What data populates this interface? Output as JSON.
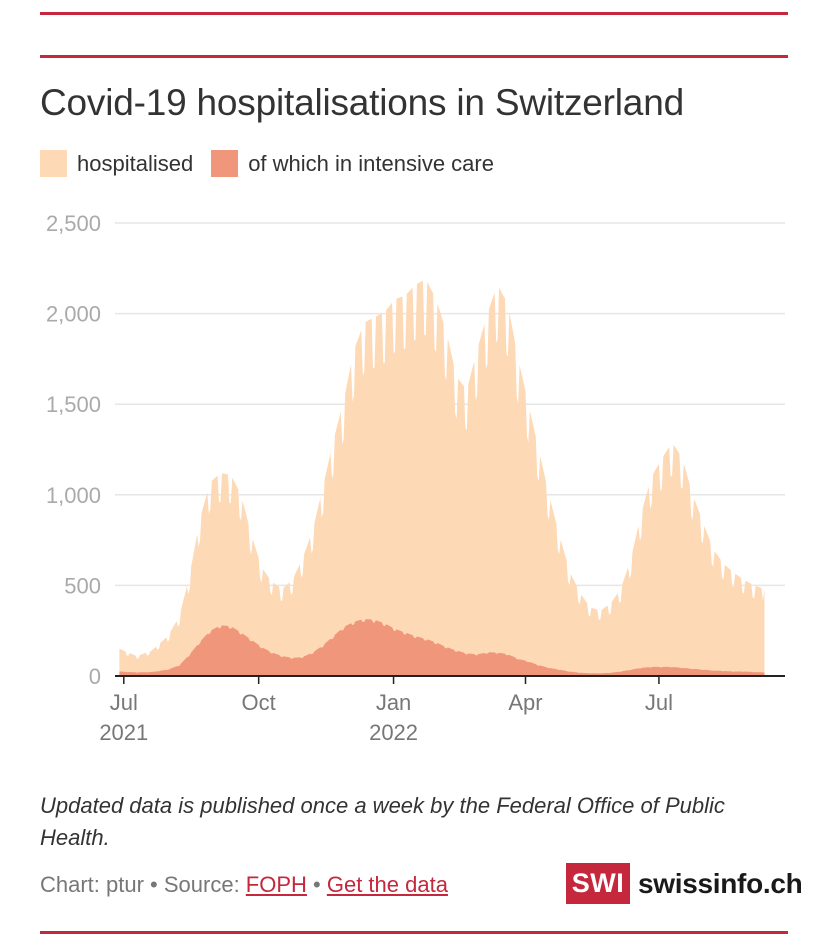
{
  "title": "Covid-19 hospitalisations in Switzerland",
  "legend": [
    {
      "label": "hospitalised",
      "color": "#fdd9b5"
    },
    {
      "label": "of which in intensive care",
      "color": "#f0967a"
    }
  ],
  "note": "Updated data is published once a week by the Federal Office of Public Health.",
  "credits": {
    "prefix": "Chart: ptur • Source: ",
    "source_link": "FOPH",
    "separator": " • ",
    "data_link": "Get the data"
  },
  "logo": {
    "box": "SWI",
    "text": "swissinfo.ch"
  },
  "colors": {
    "accent": "#c5283d",
    "hospitalised": "#fdd9b5",
    "icu": "#f0967a",
    "grid": "#e6e6e6",
    "tick": "#aaaaaa"
  },
  "chart_data": {
    "type": "area",
    "title": "Covid-19 hospitalisations in Switzerland",
    "xlabel": "",
    "ylabel": "",
    "ylim": [
      0,
      2500
    ],
    "yticks": [
      0,
      500,
      1000,
      1500,
      2000,
      2500
    ],
    "ytick_labels": [
      "0",
      "500",
      "1,000",
      "1,500",
      "2,000",
      "2,500"
    ],
    "xlim": [
      "2021-06-25",
      "2022-09-25"
    ],
    "xticks": [
      {
        "date": "2021-07-01",
        "label": "Jul",
        "sublabel": "2021"
      },
      {
        "date": "2021-10-01",
        "label": "Oct",
        "sublabel": ""
      },
      {
        "date": "2022-01-01",
        "label": "Jan",
        "sublabel": "2022"
      },
      {
        "date": "2022-04-01",
        "label": "Apr",
        "sublabel": ""
      },
      {
        "date": "2022-07-01",
        "label": "Jul",
        "sublabel": ""
      }
    ],
    "grid": true,
    "weekly_pattern": true,
    "series": [
      {
        "name": "hospitalised",
        "points": [
          [
            "2021-06-28",
            150
          ],
          [
            "2021-07-10",
            110
          ],
          [
            "2021-07-20",
            140
          ],
          [
            "2021-07-31",
            220
          ],
          [
            "2021-08-08",
            330
          ],
          [
            "2021-08-15",
            560
          ],
          [
            "2021-08-22",
            870
          ],
          [
            "2021-08-29",
            1070
          ],
          [
            "2021-09-05",
            1120
          ],
          [
            "2021-09-12",
            1110
          ],
          [
            "2021-09-19",
            1000
          ],
          [
            "2021-09-26",
            780
          ],
          [
            "2021-10-03",
            600
          ],
          [
            "2021-10-10",
            520
          ],
          [
            "2021-10-17",
            480
          ],
          [
            "2021-10-24",
            530
          ],
          [
            "2021-10-31",
            650
          ],
          [
            "2021-11-07",
            810
          ],
          [
            "2021-11-14",
            1050
          ],
          [
            "2021-11-21",
            1300
          ],
          [
            "2021-11-28",
            1520
          ],
          [
            "2021-12-05",
            1800
          ],
          [
            "2021-12-12",
            1950
          ],
          [
            "2021-12-19",
            1980
          ],
          [
            "2021-12-26",
            2010
          ],
          [
            "2022-01-02",
            2080
          ],
          [
            "2022-01-09",
            2100
          ],
          [
            "2022-01-16",
            2160
          ],
          [
            "2022-01-23",
            2190
          ],
          [
            "2022-01-30",
            2080
          ],
          [
            "2022-02-06",
            1900
          ],
          [
            "2022-02-13",
            1650
          ],
          [
            "2022-02-20",
            1580
          ],
          [
            "2022-02-27",
            1800
          ],
          [
            "2022-03-06",
            2000
          ],
          [
            "2022-03-13",
            2160
          ],
          [
            "2022-03-20",
            2050
          ],
          [
            "2022-03-27",
            1750
          ],
          [
            "2022-04-03",
            1500
          ],
          [
            "2022-04-10",
            1250
          ],
          [
            "2022-04-17",
            1000
          ],
          [
            "2022-04-24",
            780
          ],
          [
            "2022-05-01",
            580
          ],
          [
            "2022-05-08",
            460
          ],
          [
            "2022-05-15",
            380
          ],
          [
            "2022-05-22",
            360
          ],
          [
            "2022-05-29",
            400
          ],
          [
            "2022-06-05",
            480
          ],
          [
            "2022-06-12",
            650
          ],
          [
            "2022-06-19",
            900
          ],
          [
            "2022-06-26",
            1100
          ],
          [
            "2022-07-03",
            1200
          ],
          [
            "2022-07-10",
            1290
          ],
          [
            "2022-07-17",
            1200
          ],
          [
            "2022-07-24",
            1000
          ],
          [
            "2022-07-31",
            850
          ],
          [
            "2022-08-07",
            700
          ],
          [
            "2022-08-14",
            620
          ],
          [
            "2022-08-21",
            570
          ],
          [
            "2022-08-28",
            530
          ],
          [
            "2022-09-04",
            500
          ],
          [
            "2022-09-11",
            480
          ]
        ]
      },
      {
        "name": "of which in intensive care",
        "points": [
          [
            "2021-06-28",
            25
          ],
          [
            "2021-07-10",
            20
          ],
          [
            "2021-07-20",
            22
          ],
          [
            "2021-07-31",
            35
          ],
          [
            "2021-08-08",
            60
          ],
          [
            "2021-08-15",
            120
          ],
          [
            "2021-08-22",
            190
          ],
          [
            "2021-08-29",
            250
          ],
          [
            "2021-09-05",
            280
          ],
          [
            "2021-09-12",
            275
          ],
          [
            "2021-09-19",
            240
          ],
          [
            "2021-09-26",
            200
          ],
          [
            "2021-10-03",
            160
          ],
          [
            "2021-10-10",
            130
          ],
          [
            "2021-10-17",
            110
          ],
          [
            "2021-10-24",
            100
          ],
          [
            "2021-10-31",
            105
          ],
          [
            "2021-11-07",
            130
          ],
          [
            "2021-11-14",
            170
          ],
          [
            "2021-11-21",
            220
          ],
          [
            "2021-11-28",
            270
          ],
          [
            "2021-12-05",
            300
          ],
          [
            "2021-12-12",
            315
          ],
          [
            "2021-12-19",
            310
          ],
          [
            "2021-12-26",
            290
          ],
          [
            "2022-01-02",
            260
          ],
          [
            "2022-01-09",
            240
          ],
          [
            "2022-01-16",
            220
          ],
          [
            "2022-01-23",
            205
          ],
          [
            "2022-01-30",
            185
          ],
          [
            "2022-02-06",
            160
          ],
          [
            "2022-02-13",
            140
          ],
          [
            "2022-02-20",
            125
          ],
          [
            "2022-02-27",
            120
          ],
          [
            "2022-03-06",
            130
          ],
          [
            "2022-03-13",
            130
          ],
          [
            "2022-03-20",
            120
          ],
          [
            "2022-03-27",
            95
          ],
          [
            "2022-04-03",
            80
          ],
          [
            "2022-04-10",
            60
          ],
          [
            "2022-04-17",
            45
          ],
          [
            "2022-04-24",
            35
          ],
          [
            "2022-05-01",
            25
          ],
          [
            "2022-05-08",
            18
          ],
          [
            "2022-05-15",
            15
          ],
          [
            "2022-05-22",
            15
          ],
          [
            "2022-05-29",
            18
          ],
          [
            "2022-06-05",
            25
          ],
          [
            "2022-06-12",
            35
          ],
          [
            "2022-06-19",
            45
          ],
          [
            "2022-06-26",
            50
          ],
          [
            "2022-07-03",
            50
          ],
          [
            "2022-07-10",
            50
          ],
          [
            "2022-07-17",
            45
          ],
          [
            "2022-07-24",
            40
          ],
          [
            "2022-07-31",
            35
          ],
          [
            "2022-08-07",
            30
          ],
          [
            "2022-08-14",
            28
          ],
          [
            "2022-08-21",
            25
          ],
          [
            "2022-08-28",
            25
          ],
          [
            "2022-09-04",
            22
          ],
          [
            "2022-09-11",
            20
          ]
        ]
      }
    ]
  }
}
